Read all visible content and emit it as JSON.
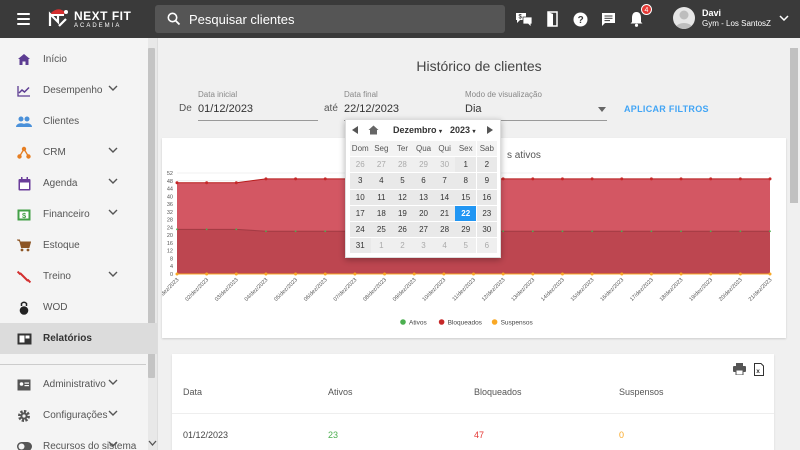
{
  "app": {
    "logo_line1": "NEXT FIT",
    "logo_line2": "ACADEMIA"
  },
  "search": {
    "placeholder": "Pesquisar clientes"
  },
  "notifications": {
    "count": "4"
  },
  "user": {
    "name": "Davi",
    "gym": "Gym - Los SantosZ"
  },
  "sidebar": {
    "items": [
      {
        "label": "Início",
        "icon": "home-icon",
        "chevron": false
      },
      {
        "label": "Desempenho",
        "icon": "chart-line-icon",
        "chevron": true
      },
      {
        "label": "Clientes",
        "icon": "people-icon",
        "chevron": false
      },
      {
        "label": "CRM",
        "icon": "crm-icon",
        "chevron": true
      },
      {
        "label": "Agenda",
        "icon": "calendar-icon",
        "chevron": true
      },
      {
        "label": "Financeiro",
        "icon": "dollar-icon",
        "chevron": true
      },
      {
        "label": "Estoque",
        "icon": "cart-icon",
        "chevron": false
      },
      {
        "label": "Treino",
        "icon": "dumbbell-icon",
        "chevron": true
      },
      {
        "label": "WOD",
        "icon": "kettlebell-icon",
        "chevron": false
      },
      {
        "label": "Relatórios",
        "icon": "report-icon",
        "chevron": false,
        "active": true
      }
    ],
    "bottom_items": [
      {
        "label": "Administrativo",
        "icon": "admin-icon",
        "chevron": true
      },
      {
        "label": "Configurações",
        "icon": "gear-icon",
        "chevron": true
      },
      {
        "label": "Recursos do sistema",
        "icon": "toggle-icon",
        "chevron": true
      }
    ]
  },
  "page": {
    "title": "Histórico de clientes",
    "filters": {
      "de_label": "De",
      "start_label": "Data inicial",
      "start_value": "01/12/2023",
      "ate_label": "até",
      "end_label": "Data final",
      "end_value": "22/12/2023",
      "mode_label": "Modo de visualização",
      "mode_value": "Dia",
      "apply_label": "APLICAR FILTROS"
    }
  },
  "datepicker": {
    "month": "Dezembro",
    "year": "2023",
    "weekdays": [
      "Dom",
      "Seg",
      "Ter",
      "Qua",
      "Qui",
      "Sex",
      "Sab"
    ],
    "weeks": [
      [
        [
          "26",
          1
        ],
        [
          "27",
          1
        ],
        [
          "28",
          1
        ],
        [
          "29",
          1
        ],
        [
          "30",
          1
        ],
        [
          "1",
          0
        ],
        [
          "2",
          0
        ]
      ],
      [
        [
          "3",
          0
        ],
        [
          "4",
          0
        ],
        [
          "5",
          0
        ],
        [
          "6",
          0
        ],
        [
          "7",
          0
        ],
        [
          "8",
          0
        ],
        [
          "9",
          0
        ]
      ],
      [
        [
          "10",
          0
        ],
        [
          "11",
          0
        ],
        [
          "12",
          0
        ],
        [
          "13",
          0
        ],
        [
          "14",
          0
        ],
        [
          "15",
          0
        ],
        [
          "16",
          0
        ]
      ],
      [
        [
          "17",
          0
        ],
        [
          "18",
          0
        ],
        [
          "19",
          0
        ],
        [
          "20",
          0
        ],
        [
          "21",
          0
        ],
        [
          "22",
          2
        ],
        [
          "23",
          0
        ]
      ],
      [
        [
          "24",
          0
        ],
        [
          "25",
          0
        ],
        [
          "26",
          0
        ],
        [
          "27",
          0
        ],
        [
          "28",
          0
        ],
        [
          "29",
          0
        ],
        [
          "30",
          0
        ]
      ],
      [
        [
          "31",
          0
        ],
        [
          "1",
          1
        ],
        [
          "2",
          1
        ],
        [
          "3",
          1
        ],
        [
          "4",
          1
        ],
        [
          "5",
          1
        ],
        [
          "6",
          1
        ]
      ]
    ]
  },
  "chart_data": {
    "type": "area",
    "title_visible_fragment": "s ativos",
    "x": [
      "01/dez/2023",
      "02/dez/2023",
      "03/dez/2023",
      "04/dez/2023",
      "05/dez/2023",
      "06/dez/2023",
      "07/dez/2023",
      "08/dez/2023",
      "09/dez/2023",
      "10/dez/2023",
      "11/dez/2023",
      "12/dez/2023",
      "13/dez/2023",
      "14/dez/2023",
      "15/dez/2023",
      "16/dez/2023",
      "17/dez/2023",
      "18/dez/2023",
      "19/dez/2023",
      "20/dez/2023",
      "21/dez/2023"
    ],
    "y_ticks": [
      0,
      4,
      8,
      12,
      16,
      20,
      24,
      28,
      32,
      36,
      40,
      44,
      48,
      52
    ],
    "ylim": [
      0,
      52
    ],
    "series": [
      {
        "name": "Ativos",
        "color": "#4caf50",
        "values": [
          23,
          23,
          23,
          22,
          22,
          22,
          22,
          22,
          22,
          22,
          22,
          22,
          22,
          22,
          22,
          22,
          22,
          22,
          22,
          22,
          22
        ]
      },
      {
        "name": "Bloqueados",
        "color": "#c62828",
        "values": [
          47,
          47,
          47,
          49,
          49,
          49,
          49,
          49,
          49,
          49,
          49,
          49,
          49,
          49,
          49,
          49,
          49,
          49,
          49,
          49,
          49
        ]
      },
      {
        "name": "Suspensos",
        "color": "#f9a825",
        "values": [
          0,
          0,
          0,
          0,
          0,
          0,
          0,
          0,
          0,
          0,
          0,
          0,
          0,
          0,
          0,
          0,
          0,
          0,
          0,
          0,
          0
        ]
      }
    ],
    "legend_position": "bottom"
  },
  "table": {
    "headers": [
      "Data",
      "Ativos",
      "Bloqueados",
      "Suspensos"
    ],
    "rows": [
      [
        "01/12/2023",
        "23",
        "47",
        "0"
      ]
    ]
  }
}
